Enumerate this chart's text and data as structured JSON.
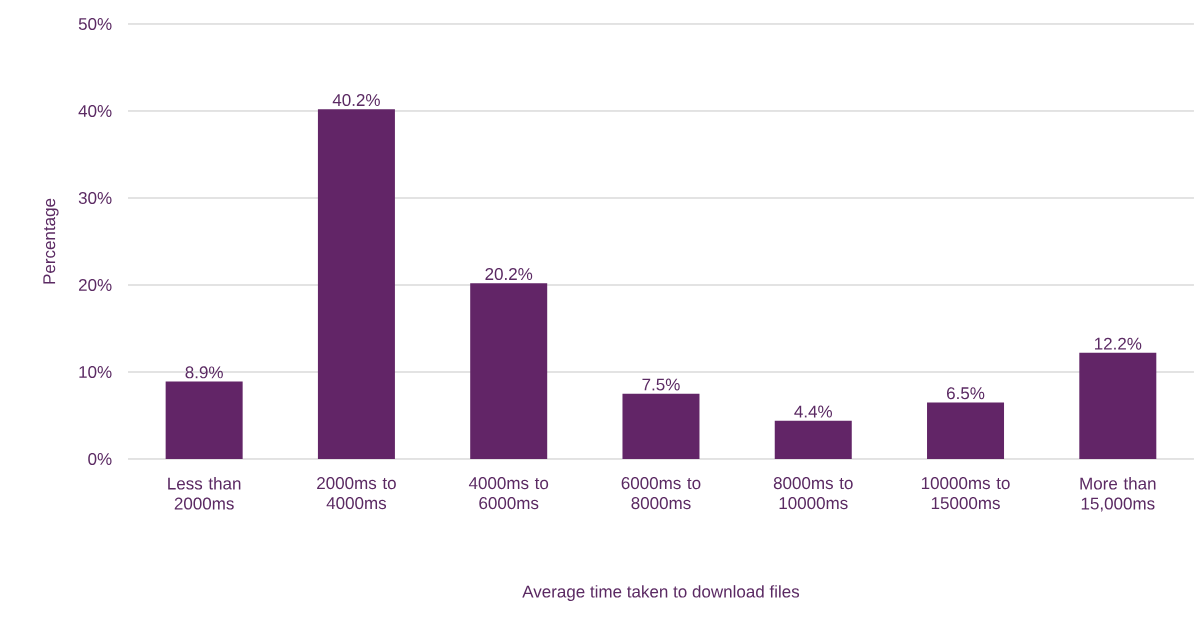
{
  "chart_data": {
    "type": "bar",
    "xlabel": "Average time taken to download files",
    "ylabel": "Percentage",
    "categories": [
      "Less than 2000ms",
      "2000ms to 4000ms",
      "4000ms to 6000ms",
      "6000ms to 8000ms",
      "8000ms to 10000ms",
      "10000ms to 15000ms",
      "More than 15,000ms"
    ],
    "values": [
      8.9,
      40.2,
      20.2,
      7.5,
      4.4,
      6.5,
      12.2
    ],
    "value_labels": [
      "8.9%",
      "40.2%",
      "20.2%",
      "7.5%",
      "4.4%",
      "6.5%",
      "12.2%"
    ],
    "color": "#622567",
    "ylim": [
      0,
      50
    ],
    "yticks": [
      {
        "value": 0,
        "label": "0%"
      },
      {
        "value": 10,
        "label": "10%"
      },
      {
        "value": 20,
        "label": "20%"
      },
      {
        "value": 30,
        "label": "30%"
      },
      {
        "value": 40,
        "label": "40%"
      },
      {
        "value": 50,
        "label": "50%"
      }
    ],
    "grid": "y"
  }
}
